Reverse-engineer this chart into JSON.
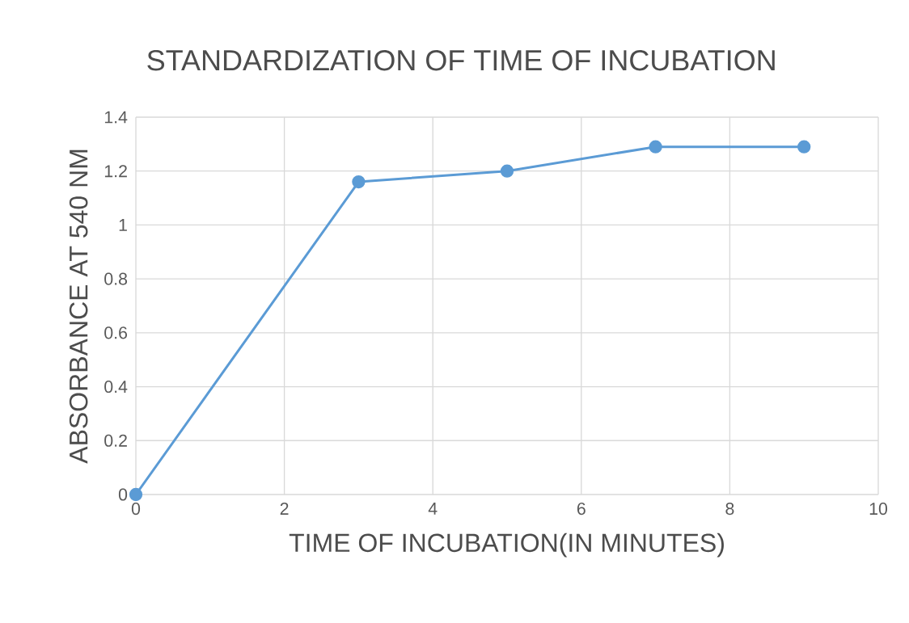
{
  "chart_data": {
    "type": "line",
    "title": "STANDARDIZATION OF TIME OF INCUBATION",
    "xlabel": "TIME OF INCUBATION(IN MINUTES)",
    "ylabel": "ABSORBANCE AT 540 NM",
    "x": [
      0,
      3,
      5,
      7,
      9
    ],
    "series": [
      {
        "color": "#5b9bd5",
        "values": [
          0,
          1.16,
          1.2,
          1.29,
          1.29
        ]
      }
    ],
    "xlim": [
      0,
      10
    ],
    "ylim": [
      0,
      1.4
    ],
    "xticks": [
      0,
      2,
      4,
      6,
      8,
      10
    ],
    "yticks": [
      0,
      0.2,
      0.4,
      0.6,
      0.8,
      1,
      1.2,
      1.4
    ],
    "grid": true,
    "marker": "circle",
    "line_style": "solid"
  }
}
